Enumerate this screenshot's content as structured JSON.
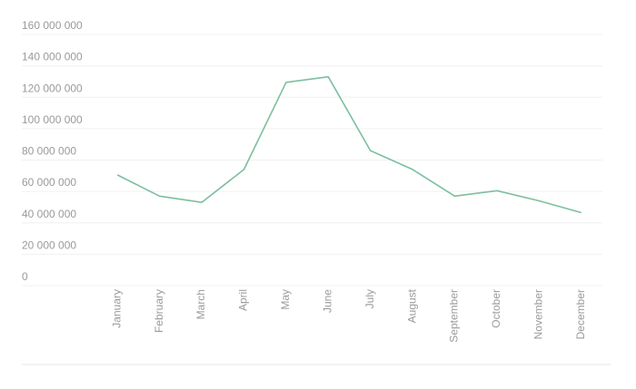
{
  "chart_data": {
    "type": "line",
    "title": "",
    "xlabel": "",
    "ylabel": "",
    "categories": [
      "January",
      "February",
      "March",
      "April",
      "May",
      "June",
      "July",
      "August",
      "September",
      "October",
      "November",
      "December"
    ],
    "y_ticks": [
      0,
      20000000,
      40000000,
      60000000,
      80000000,
      100000000,
      120000000,
      140000000,
      160000000
    ],
    "y_tick_labels": [
      "0",
      "20 000 000",
      "40 000 000",
      "60 000 000",
      "80 000 000",
      "100 000 000",
      "120 000 000",
      "140 000 000",
      "160 000 000"
    ],
    "ylim": [
      0,
      160000000
    ],
    "grid": true,
    "legend": false,
    "series": [
      {
        "values": [
          70500000,
          57000000,
          53000000,
          74000000,
          129500000,
          133000000,
          86000000,
          74000000,
          57000000,
          60500000,
          54000000,
          46500000
        ],
        "color": "#7cbf9e"
      }
    ]
  }
}
